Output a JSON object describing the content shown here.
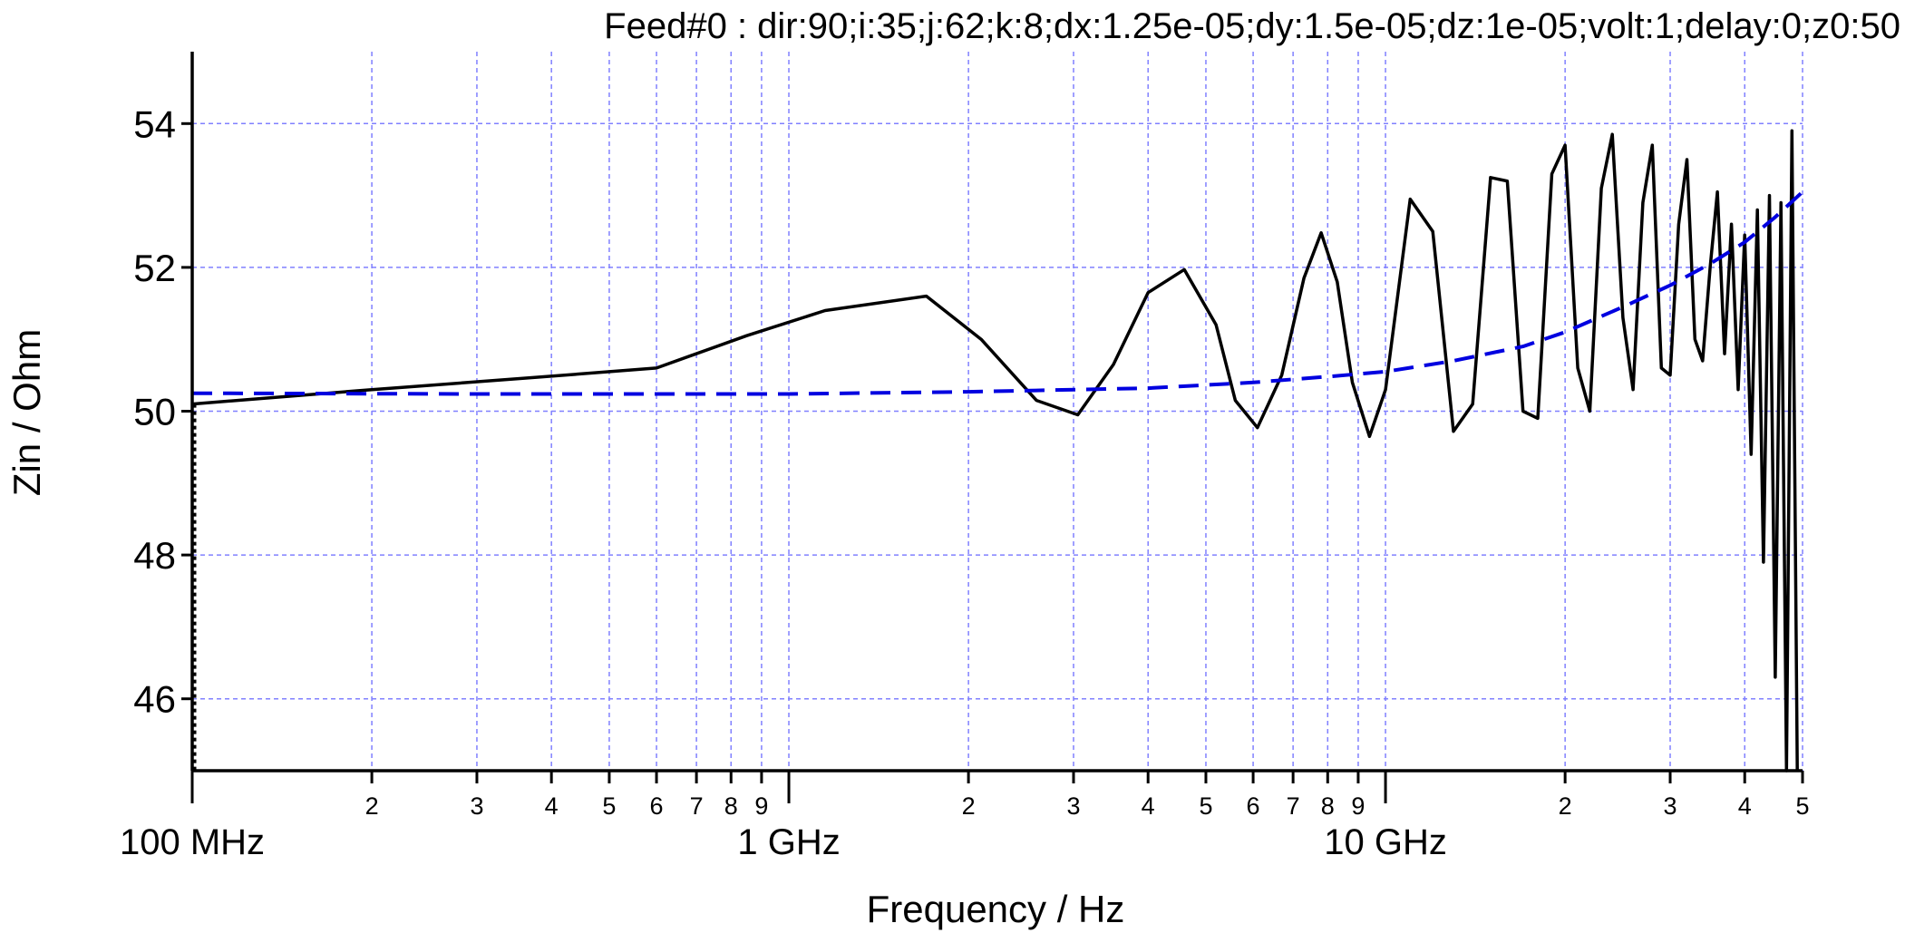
{
  "chart_data": {
    "type": "line",
    "title": "Feed#0 : dir:90;i:35;j:62;k:8;dx:1.25e-05;dy:1.5e-05;dz:1e-05;volt:1;delay:0;z0:50",
    "xlabel": "Frequency / Hz",
    "ylabel": "Zin / Ohm",
    "x_scale": "log",
    "xlim": [
      100000000.0,
      50000000000.0
    ],
    "ylim": [
      45,
      55
    ],
    "grid": true,
    "legend": "none",
    "y_ticks": [
      {
        "value": 46,
        "label": "46"
      },
      {
        "value": 48,
        "label": "48"
      },
      {
        "value": 50,
        "label": "50"
      },
      {
        "value": 52,
        "label": "52"
      },
      {
        "value": 54,
        "label": "54"
      }
    ],
    "x_major_ticks": [
      {
        "value": 100000000.0,
        "label": "100 MHz"
      },
      {
        "value": 1000000000.0,
        "label": "1 GHz"
      },
      {
        "value": 10000000000.0,
        "label": "10 GHz"
      }
    ],
    "x_minor_ticks": [
      {
        "value": 200000000.0,
        "label": "2"
      },
      {
        "value": 300000000.0,
        "label": "3"
      },
      {
        "value": 400000000.0,
        "label": "4"
      },
      {
        "value": 500000000.0,
        "label": "5"
      },
      {
        "value": 600000000.0,
        "label": "6"
      },
      {
        "value": 700000000.0,
        "label": "7"
      },
      {
        "value": 800000000.0,
        "label": "8"
      },
      {
        "value": 900000000.0,
        "label": "9"
      },
      {
        "value": 2000000000.0,
        "label": "2"
      },
      {
        "value": 3000000000.0,
        "label": "3"
      },
      {
        "value": 4000000000.0,
        "label": "4"
      },
      {
        "value": 5000000000.0,
        "label": "5"
      },
      {
        "value": 6000000000.0,
        "label": "6"
      },
      {
        "value": 7000000000.0,
        "label": "7"
      },
      {
        "value": 8000000000.0,
        "label": "8"
      },
      {
        "value": 9000000000.0,
        "label": "9"
      },
      {
        "value": 20000000000.0,
        "label": "2"
      },
      {
        "value": 30000000000.0,
        "label": "3"
      },
      {
        "value": 40000000000.0,
        "label": "4"
      },
      {
        "value": 50000000000.0,
        "label": "5"
      }
    ],
    "series": [
      {
        "color": "#000000",
        "style": "solid",
        "x": [
          100000000.0,
          200000000.0,
          350000000.0,
          600000000.0,
          850000000.0,
          1150000000.0,
          1700000000.0,
          2100000000.0,
          2600000000.0,
          3050000000.0,
          3500000000.0,
          4000000000.0,
          4600000000.0,
          5200000000.0,
          5600000000.0,
          6100000000.0,
          6700000000.0,
          7300000000.0,
          7800000000.0,
          8300000000.0,
          8800000000.0,
          9400000000.0,
          10000000000.0,
          11000000000.0,
          12000000000.0,
          13000000000.0,
          14000000000.0,
          15000000000.0,
          16000000000.0,
          17000000000.0,
          18000000000.0,
          19000000000.0,
          20000000000.0,
          21000000000.0,
          22000000000.0,
          23000000000.0,
          24000000000.0,
          25000000000.0,
          26000000000.0,
          27000000000.0,
          28000000000.0,
          29000000000.0,
          30000000000.0,
          31000000000.0,
          32000000000.0,
          33000000000.0,
          34000000000.0,
          35000000000.0,
          36000000000.0,
          37000000000.0,
          38000000000.0,
          39000000000.0,
          40000000000.0,
          41000000000.0,
          42000000000.0,
          43000000000.0,
          44000000000.0,
          45000000000.0,
          46000000000.0,
          47000000000.0,
          48000000000.0,
          49000000000.0
        ],
        "y": [
          50.1,
          50.3,
          50.45,
          50.6,
          51.05,
          51.4,
          51.6,
          51.0,
          50.15,
          49.95,
          50.65,
          51.65,
          51.97,
          51.2,
          50.15,
          49.77,
          50.5,
          51.85,
          52.48,
          51.8,
          50.4,
          49.65,
          50.3,
          52.95,
          52.5,
          49.72,
          50.1,
          53.25,
          53.2,
          50.0,
          49.9,
          53.3,
          53.7,
          50.6,
          50.0,
          53.1,
          53.85,
          51.3,
          50.3,
          52.9,
          53.7,
          50.6,
          50.5,
          52.6,
          53.5,
          51.0,
          50.7,
          52.0,
          53.05,
          50.8,
          52.6,
          50.3,
          52.45,
          49.4,
          52.8,
          47.9,
          53.0,
          46.3,
          52.9,
          45.0,
          53.9,
          45.0
        ]
      },
      {
        "color": "#0000e0",
        "style": "dashed",
        "x": [
          100000000.0,
          300000000.0,
          1000000000.0,
          2000000000.0,
          4000000000.0,
          6000000000.0,
          8000000000.0,
          10000000000.0,
          13000000000.0,
          17000000000.0,
          20000000000.0,
          25000000000.0,
          30000000000.0,
          35000000000.0,
          40000000000.0,
          45000000000.0,
          50000000000.0
        ],
        "y": [
          50.25,
          50.24,
          50.24,
          50.27,
          50.32,
          50.4,
          50.48,
          50.55,
          50.7,
          50.9,
          51.1,
          51.45,
          51.75,
          52.05,
          52.35,
          52.7,
          53.05
        ]
      }
    ]
  }
}
